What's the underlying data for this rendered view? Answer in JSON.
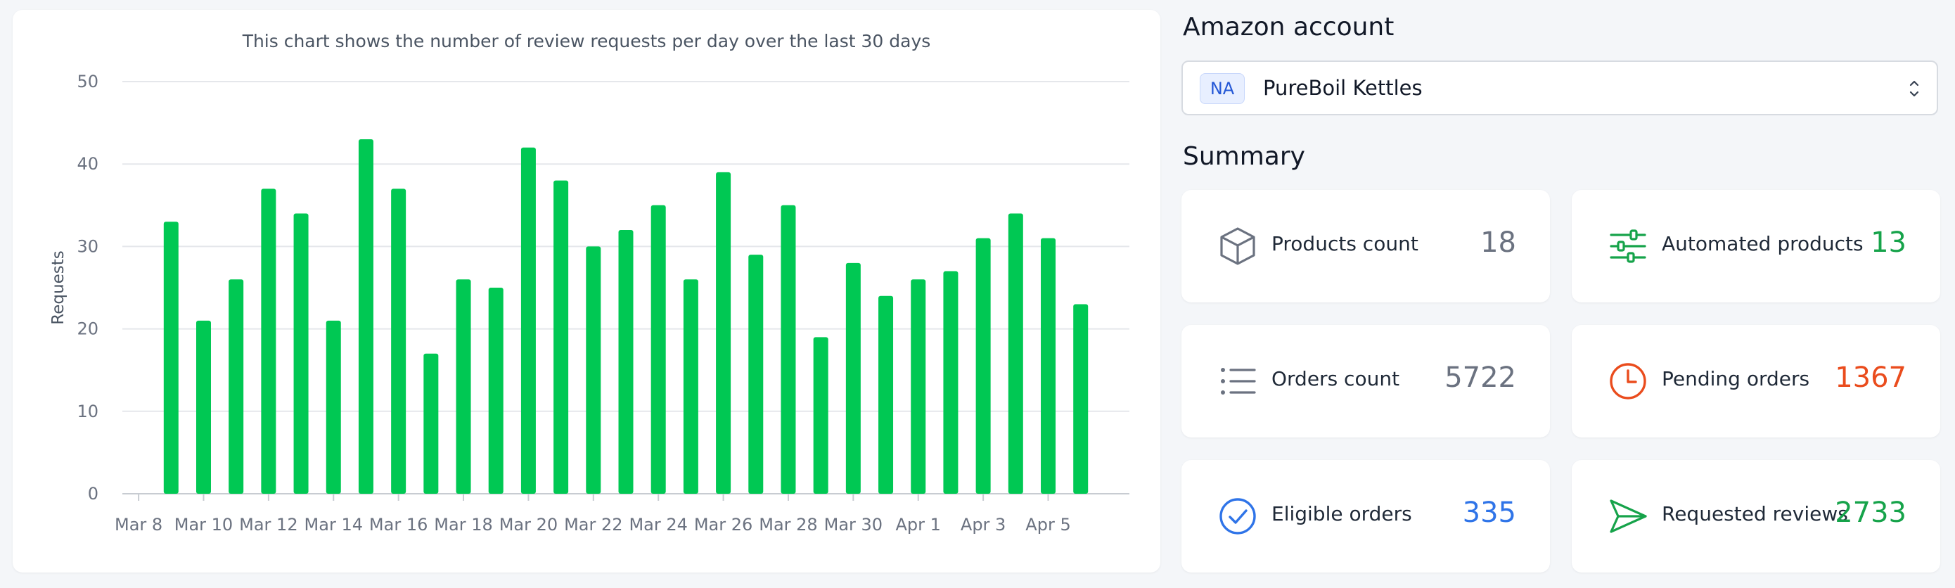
{
  "chart_data": {
    "type": "bar",
    "title": "This chart shows the number of review requests per day over the last 30 days",
    "ylabel": "Requests",
    "xlabel": "",
    "ylim": [
      0,
      50
    ],
    "yticks": [
      0,
      10,
      20,
      30,
      40,
      50
    ],
    "grid": true,
    "bar_color": "#00c853",
    "categories": [
      "Mar 8",
      "Mar 9",
      "Mar 10",
      "Mar 11",
      "Mar 12",
      "Mar 13",
      "Mar 14",
      "Mar 15",
      "Mar 16",
      "Mar 17",
      "Mar 18",
      "Mar 19",
      "Mar 20",
      "Mar 21",
      "Mar 22",
      "Mar 23",
      "Mar 24",
      "Mar 25",
      "Mar 26",
      "Mar 27",
      "Mar 28",
      "Mar 29",
      "Mar 30",
      "Mar 31",
      "Apr 1",
      "Apr 2",
      "Apr 3",
      "Apr 4",
      "Apr 5",
      "Apr 6",
      "Apr 7"
    ],
    "values": [
      null,
      33,
      21,
      26,
      37,
      34,
      21,
      43,
      37,
      17,
      26,
      25,
      42,
      38,
      30,
      32,
      35,
      26,
      39,
      29,
      35,
      19,
      28,
      24,
      26,
      27,
      31,
      34,
      31,
      23,
      null
    ],
    "tick_labels": [
      "Mar 8",
      "Mar 10",
      "Mar 12",
      "Mar 14",
      "Mar 16",
      "Mar 18",
      "Mar 20",
      "Mar 22",
      "Mar 24",
      "Mar 26",
      "Mar 28",
      "Mar 30",
      "Apr 1",
      "Apr 3",
      "Apr 5"
    ]
  },
  "account": {
    "heading": "Amazon account",
    "region": "NA",
    "name": "PureBoil Kettles"
  },
  "summary": {
    "heading": "Summary",
    "cards": [
      {
        "label": "Products count",
        "value": "18",
        "icon": "cube-icon",
        "color": "#6b7280"
      },
      {
        "label": "Automated products",
        "value": "13",
        "icon": "sliders-icon",
        "color": "#16a34a"
      },
      {
        "label": "Orders count",
        "value": "5722",
        "icon": "list-icon",
        "color": "#6b7280"
      },
      {
        "label": "Pending orders",
        "value": "1367",
        "icon": "clock-icon",
        "color": "#ea4c1d"
      },
      {
        "label": "Eligible orders",
        "value": "335",
        "icon": "check-circle-icon",
        "color": "#2f74e8"
      },
      {
        "label": "Requested reviews",
        "value": "2733",
        "icon": "send-icon",
        "color": "#16a34a"
      }
    ]
  }
}
